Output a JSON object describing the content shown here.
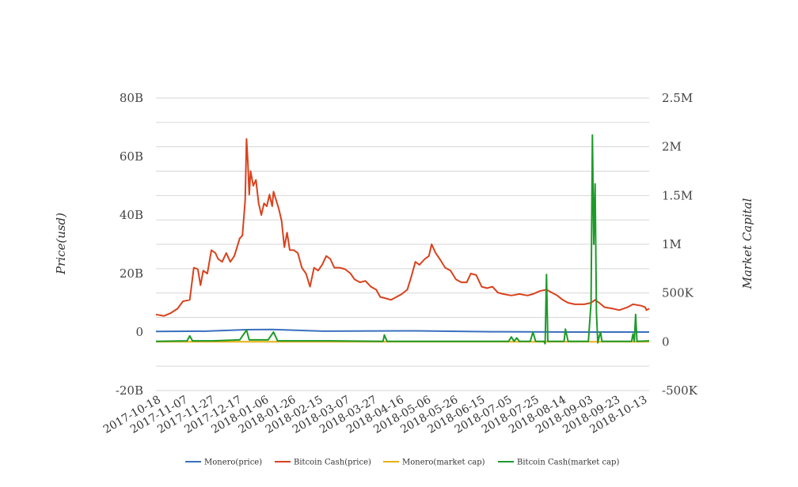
{
  "chart_data": {
    "type": "line",
    "title": "",
    "ylabel": "Price(usd)",
    "y2label": "Market Capital",
    "ylim": [
      -20000000000,
      80000000000
    ],
    "y2lim": [
      -500000,
      2500000
    ],
    "yticks": [
      "80B",
      "60B",
      "40B",
      "20B",
      "0",
      "-20B"
    ],
    "y2ticks": [
      "2.5M",
      "2M",
      "1.5M",
      "1M",
      "500K",
      "0",
      "-500K"
    ],
    "xlim": [
      "2017-10-14",
      "2018-10-14"
    ],
    "xticks": [
      "2017-10-18",
      "2017-11-07",
      "2017-11-27",
      "2017-12-17",
      "2018-01-06",
      "2018-01-26",
      "2018-02-15",
      "2018-03-07",
      "2018-03-27",
      "2018-04-16",
      "2018-05-06",
      "2018-05-26",
      "2018-06-15",
      "2018-07-05",
      "2018-07-25",
      "2018-08-14",
      "2018-09-03",
      "2018-09-23",
      "2018-10-13"
    ],
    "grid": true,
    "legend_position": "bottom",
    "series": [
      {
        "name": "Monero(price)",
        "axis": "left",
        "color": "#3a6fbf",
        "points": [
          [
            "2017-10-14",
            0.2
          ],
          [
            "2017-11-20",
            0.3
          ],
          [
            "2017-12-20",
            0.8
          ],
          [
            "2018-01-08",
            0.9
          ],
          [
            "2018-02-15",
            0.3
          ],
          [
            "2018-04-25",
            0.4
          ],
          [
            "2018-06-20",
            0.1
          ],
          [
            "2018-08-20",
            0.0
          ],
          [
            "2018-10-14",
            0.0
          ]
        ]
      },
      {
        "name": "Bitcoin Cash(price)",
        "axis": "left",
        "color": "#d9421c",
        "points": [
          [
            "2017-10-14",
            6
          ],
          [
            "2017-10-20",
            5.5
          ],
          [
            "2017-10-25",
            6.5
          ],
          [
            "2017-10-30",
            8
          ],
          [
            "2017-11-03",
            10.5
          ],
          [
            "2017-11-08",
            11
          ],
          [
            "2017-11-11",
            22
          ],
          [
            "2017-11-14",
            21.5
          ],
          [
            "2017-11-16",
            16
          ],
          [
            "2017-11-18",
            21
          ],
          [
            "2017-11-21",
            20
          ],
          [
            "2017-11-24",
            28
          ],
          [
            "2017-11-27",
            27
          ],
          [
            "2017-11-29",
            25
          ],
          [
            "2017-12-02",
            24
          ],
          [
            "2017-12-05",
            27
          ],
          [
            "2017-12-08",
            24
          ],
          [
            "2017-12-11",
            26
          ],
          [
            "2017-12-13",
            29
          ],
          [
            "2017-12-15",
            32
          ],
          [
            "2017-12-17",
            33
          ],
          [
            "2017-12-19",
            45
          ],
          [
            "2017-12-20",
            66
          ],
          [
            "2017-12-21",
            58
          ],
          [
            "2017-12-22",
            47
          ],
          [
            "2017-12-23",
            55
          ],
          [
            "2017-12-25",
            50
          ],
          [
            "2017-12-27",
            52
          ],
          [
            "2017-12-29",
            44
          ],
          [
            "2017-12-31",
            40
          ],
          [
            "2018-01-02",
            44
          ],
          [
            "2018-01-04",
            43
          ],
          [
            "2018-01-06",
            47
          ],
          [
            "2018-01-08",
            43
          ],
          [
            "2018-01-09",
            48
          ],
          [
            "2018-01-11",
            45
          ],
          [
            "2018-01-13",
            42
          ],
          [
            "2018-01-15",
            38
          ],
          [
            "2018-01-17",
            29
          ],
          [
            "2018-01-19",
            34
          ],
          [
            "2018-01-21",
            28
          ],
          [
            "2018-01-24",
            28
          ],
          [
            "2018-01-27",
            27
          ],
          [
            "2018-01-30",
            22
          ],
          [
            "2018-02-02",
            20
          ],
          [
            "2018-02-05",
            15.5
          ],
          [
            "2018-02-08",
            22
          ],
          [
            "2018-02-11",
            21
          ],
          [
            "2018-02-14",
            23
          ],
          [
            "2018-02-17",
            26
          ],
          [
            "2018-02-20",
            25
          ],
          [
            "2018-02-23",
            22
          ],
          [
            "2018-02-27",
            22
          ],
          [
            "2018-03-03",
            21.5
          ],
          [
            "2018-03-07",
            20
          ],
          [
            "2018-03-10",
            18
          ],
          [
            "2018-03-14",
            17
          ],
          [
            "2018-03-18",
            17.5
          ],
          [
            "2018-03-22",
            15.5
          ],
          [
            "2018-03-26",
            14.5
          ],
          [
            "2018-03-29",
            12
          ],
          [
            "2018-04-02",
            11.5
          ],
          [
            "2018-04-06",
            11
          ],
          [
            "2018-04-10",
            12
          ],
          [
            "2018-04-14",
            13
          ],
          [
            "2018-04-18",
            14.5
          ],
          [
            "2018-04-21",
            19
          ],
          [
            "2018-04-24",
            24
          ],
          [
            "2018-04-27",
            23
          ],
          [
            "2018-05-01",
            25
          ],
          [
            "2018-05-04",
            26
          ],
          [
            "2018-05-06",
            30
          ],
          [
            "2018-05-09",
            27
          ],
          [
            "2018-05-12",
            25
          ],
          [
            "2018-05-16",
            22
          ],
          [
            "2018-05-20",
            21
          ],
          [
            "2018-05-24",
            18
          ],
          [
            "2018-05-28",
            17
          ],
          [
            "2018-06-01",
            17
          ],
          [
            "2018-06-04",
            20
          ],
          [
            "2018-06-08",
            19.5
          ],
          [
            "2018-06-12",
            15.5
          ],
          [
            "2018-06-16",
            15
          ],
          [
            "2018-06-20",
            15.5
          ],
          [
            "2018-06-24",
            13.5
          ],
          [
            "2018-06-28",
            13
          ],
          [
            "2018-07-04",
            12.5
          ],
          [
            "2018-07-10",
            13
          ],
          [
            "2018-07-16",
            12.5
          ],
          [
            "2018-07-20",
            13
          ],
          [
            "2018-07-25",
            14
          ],
          [
            "2018-07-30",
            14.5
          ],
          [
            "2018-08-03",
            13.5
          ],
          [
            "2018-08-07",
            12.5
          ],
          [
            "2018-08-11",
            11
          ],
          [
            "2018-08-15",
            10
          ],
          [
            "2018-08-20",
            9.5
          ],
          [
            "2018-08-27",
            9.5
          ],
          [
            "2018-09-01",
            10
          ],
          [
            "2018-09-04",
            11
          ],
          [
            "2018-09-07",
            10
          ],
          [
            "2018-09-11",
            8.5
          ],
          [
            "2018-09-17",
            8
          ],
          [
            "2018-09-22",
            7.5
          ],
          [
            "2018-09-28",
            8.5
          ],
          [
            "2018-10-02",
            9.5
          ],
          [
            "2018-10-08",
            9
          ],
          [
            "2018-10-11",
            8.5
          ],
          [
            "2018-10-12",
            7.5
          ],
          [
            "2018-10-14",
            8
          ]
        ]
      },
      {
        "name": "Monero(market cap)",
        "axis": "right",
        "color": "#e8b012",
        "points": [
          [
            "2017-10-14",
            0
          ],
          [
            "2018-10-14",
            0
          ]
        ]
      },
      {
        "name": "Bitcoin Cash(market cap)",
        "axis": "right",
        "color": "#1f9a2a",
        "points": [
          [
            "2017-10-14",
            5000
          ],
          [
            "2017-11-06",
            10000
          ],
          [
            "2017-11-08",
            60000
          ],
          [
            "2017-11-10",
            10000
          ],
          [
            "2017-11-25",
            10000
          ],
          [
            "2017-12-15",
            20000
          ],
          [
            "2017-12-20",
            120000
          ],
          [
            "2017-12-22",
            20000
          ],
          [
            "2018-01-05",
            20000
          ],
          [
            "2018-01-09",
            100000
          ],
          [
            "2018-01-12",
            10000
          ],
          [
            "2018-02-20",
            10000
          ],
          [
            "2018-03-31",
            5000
          ],
          [
            "2018-04-01",
            70000
          ],
          [
            "2018-04-03",
            5000
          ],
          [
            "2018-07-02",
            5000
          ],
          [
            "2018-07-04",
            50000
          ],
          [
            "2018-07-06",
            5000
          ],
          [
            "2018-07-08",
            40000
          ],
          [
            "2018-07-10",
            5000
          ],
          [
            "2018-07-18",
            5000
          ],
          [
            "2018-07-20",
            100000
          ],
          [
            "2018-07-22",
            5000
          ],
          [
            "2018-07-28",
            5000
          ],
          [
            "2018-07-29",
            -20000
          ],
          [
            "2018-07-30",
            690000
          ],
          [
            "2018-07-31",
            5000
          ],
          [
            "2018-08-12",
            5000
          ],
          [
            "2018-08-13",
            130000
          ],
          [
            "2018-08-15",
            5000
          ],
          [
            "2018-08-30",
            5000
          ],
          [
            "2018-09-01",
            400000
          ],
          [
            "2018-09-02",
            2120000
          ],
          [
            "2018-09-03",
            1000000
          ],
          [
            "2018-09-04",
            1620000
          ],
          [
            "2018-09-05",
            300000
          ],
          [
            "2018-09-06",
            -10000
          ],
          [
            "2018-09-07",
            50000
          ],
          [
            "2018-09-08",
            100000
          ],
          [
            "2018-09-09",
            5000
          ],
          [
            "2018-10-01",
            5000
          ],
          [
            "2018-10-02",
            80000
          ],
          [
            "2018-10-03",
            5000
          ],
          [
            "2018-10-04",
            280000
          ],
          [
            "2018-10-05",
            5000
          ],
          [
            "2018-10-14",
            10000
          ]
        ]
      }
    ]
  }
}
